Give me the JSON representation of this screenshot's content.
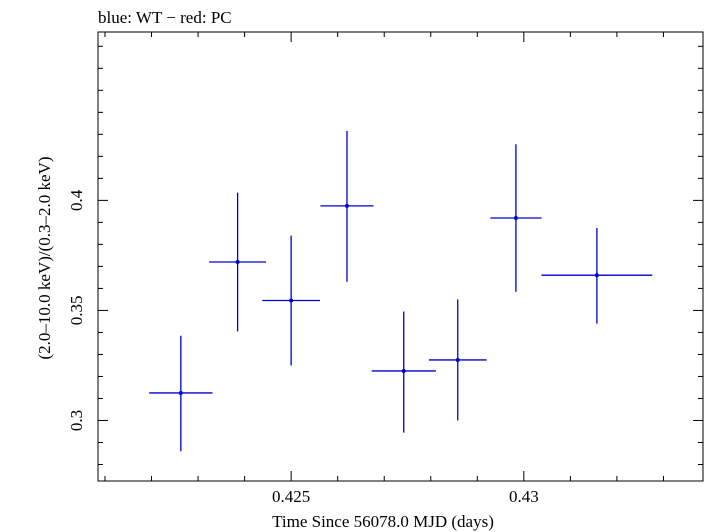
{
  "chart_data": {
    "type": "scatter",
    "title": "blue: WT − red: PC",
    "xlabel": "Time Since 56078.0 MJD (days)",
    "ylabel": "(2.0–10.0 keV)/(0.3–2.0 keV)",
    "xlim": [
      0.42085,
      0.43385
    ],
    "ylim": [
      0.2725,
      0.4765
    ],
    "x_ticks": [
      0.425,
      0.43
    ],
    "x_tick_labels": [
      "0.425",
      "0.43"
    ],
    "y_ticks": [
      0.3,
      0.35,
      0.4
    ],
    "y_tick_labels": [
      "0.3",
      "0.35",
      "0.4"
    ],
    "grid": false,
    "series": [
      {
        "color": "#0000d0",
        "points": [
          {
            "x": 0.42263,
            "xerr": 0.00068,
            "y": 0.3125,
            "yerr_lo": 0.0265,
            "yerr_hi": 0.026
          },
          {
            "x": 0.42385,
            "xerr": 0.00061,
            "y": 0.372,
            "yerr_lo": 0.0315,
            "yerr_hi": 0.0315
          },
          {
            "x": 0.425,
            "xerr": 0.00062,
            "y": 0.3545,
            "yerr_lo": 0.0295,
            "yerr_hi": 0.0295
          },
          {
            "x": 0.4262,
            "xerr": 0.00057,
            "y": 0.3975,
            "yerr_lo": 0.0345,
            "yerr_hi": 0.034
          },
          {
            "x": 0.42742,
            "xerr": 0.00069,
            "y": 0.3225,
            "yerr_lo": 0.028,
            "yerr_hi": 0.027
          },
          {
            "x": 0.42858,
            "xerr": 0.00062,
            "y": 0.3275,
            "yerr_lo": 0.0275,
            "yerr_hi": 0.0275
          },
          {
            "x": 0.42983,
            "xerr": 0.00055,
            "y": 0.392,
            "yerr_lo": 0.0335,
            "yerr_hi": 0.0335
          },
          {
            "x": 0.43157,
            "xerr": 0.00119,
            "y": 0.366,
            "yerr_lo": 0.022,
            "yerr_hi": 0.0215
          }
        ]
      }
    ]
  }
}
